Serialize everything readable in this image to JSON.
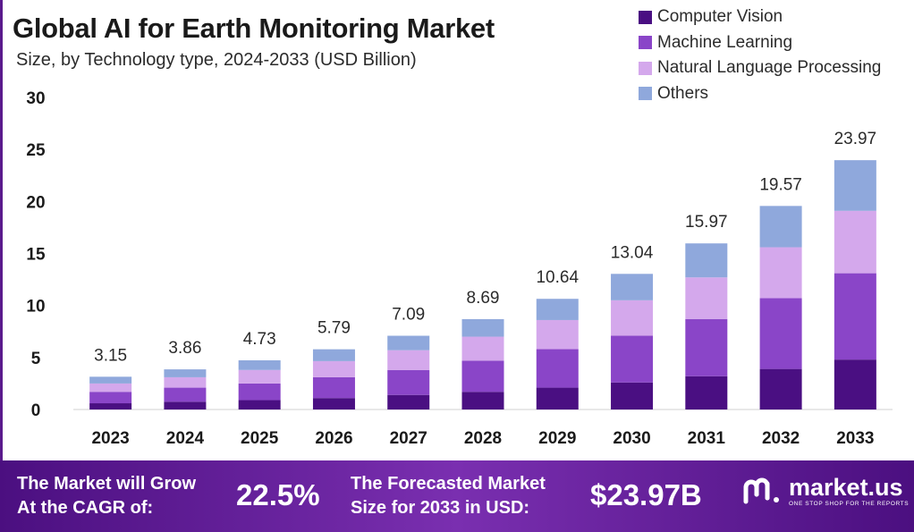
{
  "header": {
    "title": "Global AI for Earth Monitoring Market",
    "subtitle": "Size, by Technology type, 2024-2033 (USD Billion)"
  },
  "colors": {
    "computer_vision": "#4a0f82",
    "machine_learning": "#8a45c8",
    "nlp": "#d4a8ec",
    "others": "#8fa8dc",
    "footer_bg": "#5c1f96"
  },
  "chart_data": {
    "type": "bar",
    "stacked": true,
    "categories": [
      "2023",
      "2024",
      "2025",
      "2026",
      "2027",
      "2028",
      "2029",
      "2030",
      "2031",
      "2032",
      "2033"
    ],
    "totals": [
      3.15,
      3.86,
      4.73,
      5.79,
      7.09,
      8.69,
      10.64,
      13.04,
      15.97,
      19.57,
      23.97
    ],
    "total_labels": [
      "3.15",
      "3.86",
      "4.73",
      "5.79",
      "7.09",
      "8.69",
      "10.64",
      "13.04",
      "15.97",
      "19.57",
      "23.97"
    ],
    "series": [
      {
        "name": "Computer Vision",
        "values": [
          0.6,
          0.75,
          0.9,
          1.1,
          1.4,
          1.7,
          2.1,
          2.6,
          3.2,
          3.9,
          4.8
        ]
      },
      {
        "name": "Machine Learning",
        "values": [
          1.1,
          1.35,
          1.6,
          2.0,
          2.4,
          3.0,
          3.7,
          4.5,
          5.5,
          6.8,
          8.3
        ]
      },
      {
        "name": "Natural Language Processing",
        "values": [
          0.8,
          1.0,
          1.3,
          1.55,
          1.9,
          2.3,
          2.8,
          3.4,
          4.0,
          4.9,
          6.0
        ]
      },
      {
        "name": "Others",
        "values": [
          0.65,
          0.76,
          0.93,
          1.14,
          1.39,
          1.69,
          2.04,
          2.54,
          3.27,
          3.97,
          4.87
        ]
      }
    ],
    "yticks": [
      "0",
      "5",
      "10",
      "15",
      "20",
      "25",
      "30"
    ],
    "ylim": [
      0,
      30
    ],
    "grid": false,
    "legend_position": "top-right"
  },
  "legend": {
    "items": [
      {
        "label": "Computer Vision",
        "color": "#4a0f82"
      },
      {
        "label": "Machine Learning",
        "color": "#8a45c8"
      },
      {
        "label": "Natural Language Processing",
        "color": "#d4a8ec"
      },
      {
        "label": "Others",
        "color": "#8fa8dc"
      }
    ]
  },
  "footer": {
    "cagr_text_line1": "The Market will Grow",
    "cagr_text_line2": "At the CAGR of:",
    "cagr_value": "22.5%",
    "forecast_text_line1": "The Forecasted Market",
    "forecast_text_line2": "Size for 2033 in USD:",
    "forecast_value": "$23.97B",
    "brand_name": "market.us",
    "brand_tagline": "ONE STOP SHOP FOR THE REPORTS"
  }
}
